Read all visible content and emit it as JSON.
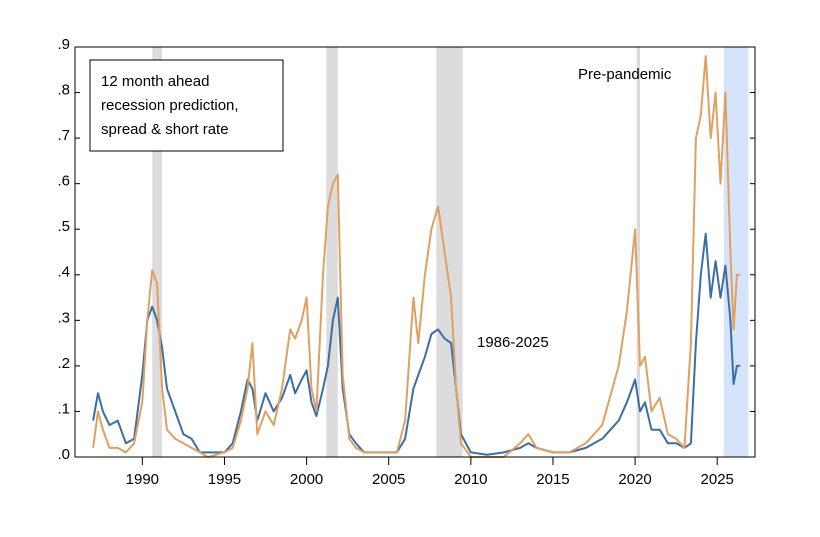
{
  "chart_data": {
    "type": "line",
    "annotation_lines": [
      "12 month ahead",
      "recession prediction,",
      "spread & short rate"
    ],
    "x": [
      1987.0,
      1987.3,
      1987.6,
      1988.0,
      1988.5,
      1989.0,
      1989.5,
      1990.0,
      1990.3,
      1990.6,
      1990.9,
      1991.2,
      1991.5,
      1992.0,
      1992.5,
      1993.0,
      1993.5,
      1994.0,
      1995.0,
      1995.5,
      1996.0,
      1996.4,
      1996.7,
      1997.0,
      1997.5,
      1998.0,
      1998.5,
      1999.0,
      1999.3,
      1999.7,
      2000.0,
      2000.3,
      2000.6,
      2001.0,
      2001.3,
      2001.6,
      2001.9,
      2002.2,
      2002.6,
      2003.0,
      2003.5,
      2004.5,
      2005.5,
      2006.0,
      2006.5,
      2006.8,
      2007.2,
      2007.6,
      2008.0,
      2008.4,
      2008.8,
      2009.1,
      2009.4,
      2010.0,
      2011.0,
      2012.0,
      2013.0,
      2013.5,
      2014.0,
      2015.0,
      2016.0,
      2017.0,
      2018.0,
      2019.0,
      2019.5,
      2020.0,
      2020.3,
      2020.6,
      2021.0,
      2021.5,
      2022.0,
      2022.5,
      2023.0,
      2023.4,
      2023.7,
      2024.0,
      2024.3,
      2024.6,
      2024.9,
      2025.2,
      2025.5,
      2025.8,
      2026.0,
      2026.2,
      2026.4
    ],
    "series": [
      {
        "name": "1986-2025",
        "color": "#3b6ea5",
        "values": [
          0.08,
          0.14,
          0.1,
          0.07,
          0.08,
          0.03,
          0.04,
          0.18,
          0.3,
          0.33,
          0.3,
          0.24,
          0.15,
          0.1,
          0.05,
          0.04,
          0.01,
          0.01,
          0.01,
          0.03,
          0.1,
          0.17,
          0.15,
          0.08,
          0.14,
          0.1,
          0.13,
          0.18,
          0.14,
          0.17,
          0.19,
          0.12,
          0.09,
          0.15,
          0.2,
          0.3,
          0.35,
          0.15,
          0.05,
          0.03,
          0.01,
          0.01,
          0.01,
          0.04,
          0.15,
          0.18,
          0.22,
          0.27,
          0.28,
          0.26,
          0.25,
          0.15,
          0.05,
          0.01,
          0.005,
          0.01,
          0.02,
          0.03,
          0.02,
          0.01,
          0.01,
          0.02,
          0.04,
          0.08,
          0.12,
          0.17,
          0.1,
          0.12,
          0.06,
          0.06,
          0.03,
          0.03,
          0.02,
          0.03,
          0.25,
          0.4,
          0.49,
          0.35,
          0.43,
          0.35,
          0.42,
          0.3,
          0.16,
          0.2,
          0.2
        ]
      },
      {
        "name": "Pre-pandemic",
        "color": "#e0a060",
        "values": [
          0.02,
          0.1,
          0.06,
          0.02,
          0.02,
          0.01,
          0.03,
          0.12,
          0.3,
          0.41,
          0.38,
          0.15,
          0.06,
          0.04,
          0.03,
          0.02,
          0.01,
          0.0,
          0.01,
          0.02,
          0.08,
          0.15,
          0.25,
          0.05,
          0.1,
          0.07,
          0.15,
          0.28,
          0.26,
          0.3,
          0.35,
          0.15,
          0.1,
          0.4,
          0.55,
          0.6,
          0.62,
          0.18,
          0.04,
          0.02,
          0.01,
          0.01,
          0.01,
          0.08,
          0.35,
          0.25,
          0.4,
          0.5,
          0.55,
          0.45,
          0.35,
          0.15,
          0.03,
          0.0,
          0.0,
          0.0,
          0.03,
          0.05,
          0.02,
          0.01,
          0.01,
          0.03,
          0.07,
          0.2,
          0.32,
          0.5,
          0.2,
          0.22,
          0.1,
          0.13,
          0.05,
          0.04,
          0.02,
          0.25,
          0.7,
          0.75,
          0.88,
          0.7,
          0.8,
          0.6,
          0.8,
          0.45,
          0.28,
          0.4,
          0.4
        ]
      }
    ],
    "recessions": [
      [
        1990.6,
        1991.2
      ],
      [
        2001.2,
        2001.9
      ],
      [
        2007.9,
        2009.5
      ],
      [
        2020.1,
        2020.3
      ]
    ],
    "recession_color": "#dcdcdc",
    "forecast_period": [
      2025.4,
      2026.9
    ],
    "forecast_color": "#d6e4fb",
    "xlim": [
      1985.9,
      2027.3
    ],
    "xticks": [
      1990,
      1995,
      2000,
      2005,
      2010,
      2015,
      2020,
      2025
    ],
    "ylim": [
      0,
      0.9
    ],
    "yticks": [
      {
        "value": 0,
        "label": ".0"
      },
      {
        "value": 0.1,
        "label": ".1"
      },
      {
        "value": 0.2,
        "label": ".2"
      },
      {
        "value": 0.3,
        "label": ".3"
      },
      {
        "value": 0.4,
        "label": ".4"
      },
      {
        "value": 0.5,
        "label": ".5"
      },
      {
        "value": 0.6,
        "label": ".6"
      },
      {
        "value": 0.7,
        "label": ".7"
      },
      {
        "value": 0.8,
        "label": ".8"
      },
      {
        "value": 0.9,
        "label": ".9"
      }
    ]
  }
}
